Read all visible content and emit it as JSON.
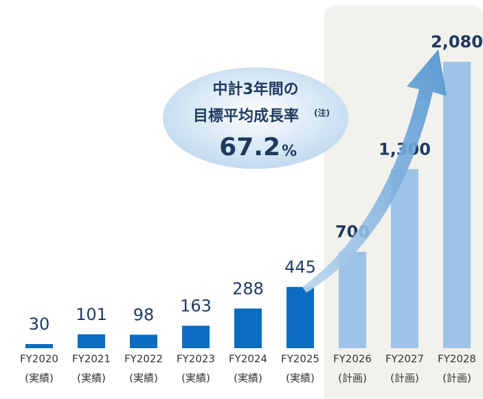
{
  "chart_data": {
    "type": "bar",
    "categories": [
      "FY2020",
      "FY2021",
      "FY2022",
      "FY2023",
      "FY2024",
      "FY2025",
      "FY2026",
      "FY2027",
      "FY2028"
    ],
    "category_sublabels": [
      "(実績)",
      "(実績)",
      "(実績)",
      "(実績)",
      "(実績)",
      "(実績)",
      "(計画)",
      "(計画)",
      "(計画)"
    ],
    "values": [
      30,
      101,
      98,
      163,
      288,
      445,
      700,
      1300,
      2080
    ],
    "value_labels": [
      "30",
      "101",
      "98",
      "163",
      "288",
      "445",
      "700",
      "1,300",
      "2,080"
    ],
    "colors": [
      "#0b6cc1",
      "#0b6cc1",
      "#0b6cc1",
      "#0b6cc1",
      "#0b6cc1",
      "#0b6cc1",
      "#9dc3e6",
      "#9dc3e6",
      "#9dc3e6"
    ],
    "annotation": {
      "line1": "中計3年間の",
      "line2": "目標平均成長率",
      "note": "(注)",
      "value": "67.2",
      "unit": "%"
    }
  }
}
